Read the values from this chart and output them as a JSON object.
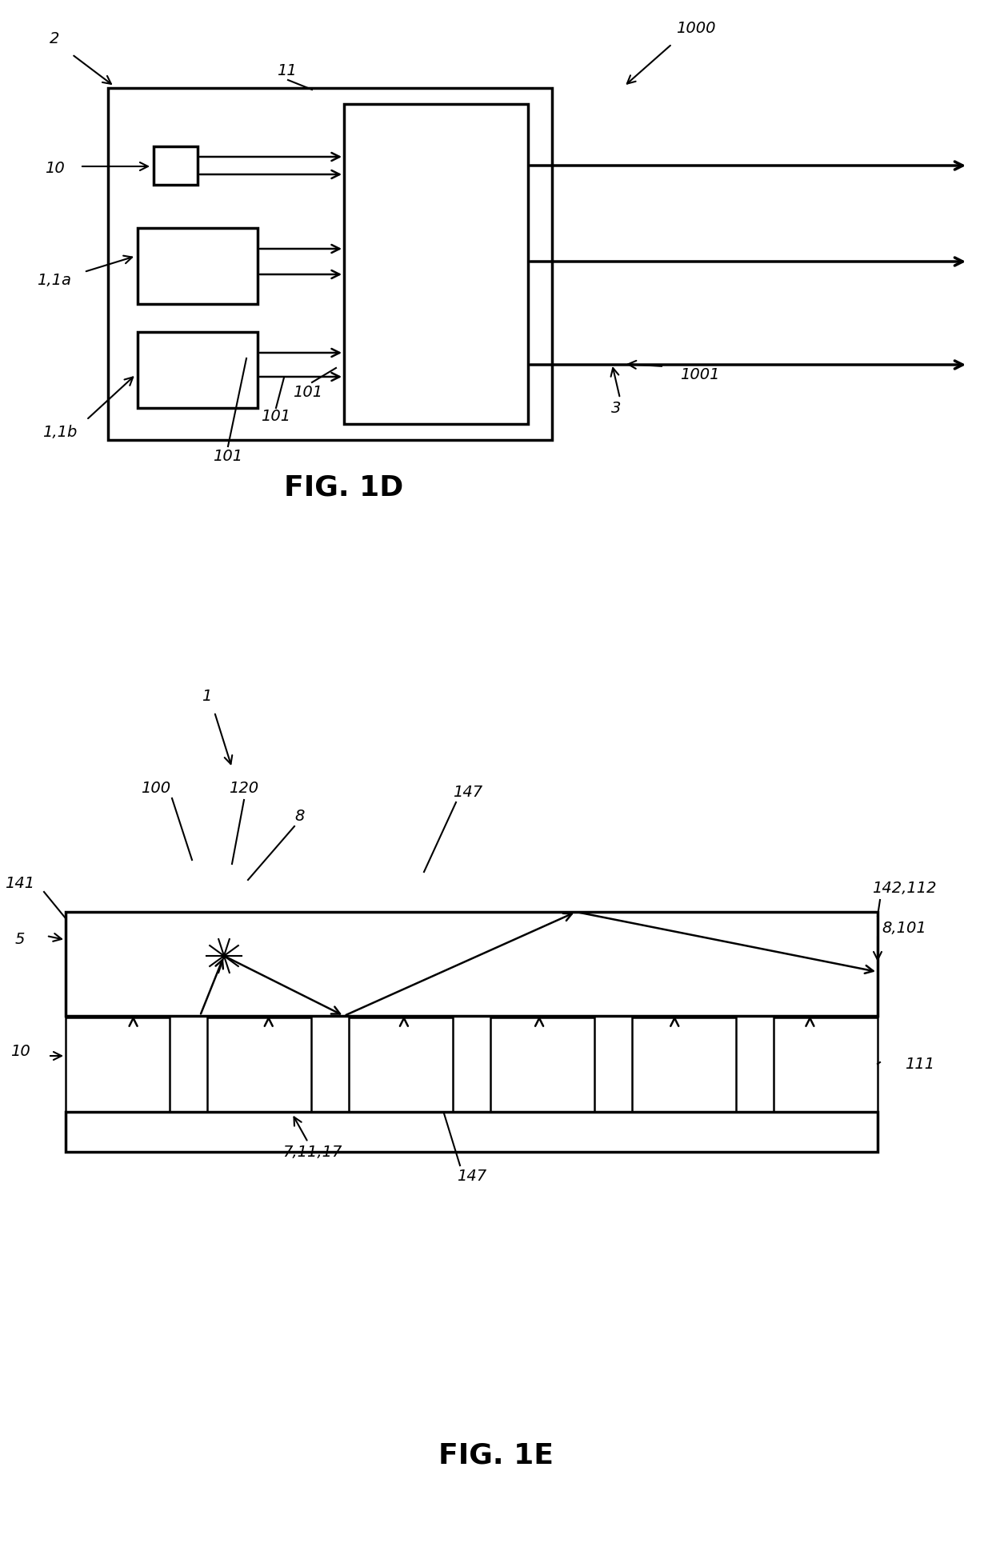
{
  "fig_width": 12.4,
  "fig_height": 19.59,
  "bg_color": "#ffffff",
  "line_color": "#000000",
  "fig1d_title": "FIG. 1D",
  "fig1e_title": "FIG. 1E",
  "label_fontsize": 14,
  "title_fontsize": 26
}
